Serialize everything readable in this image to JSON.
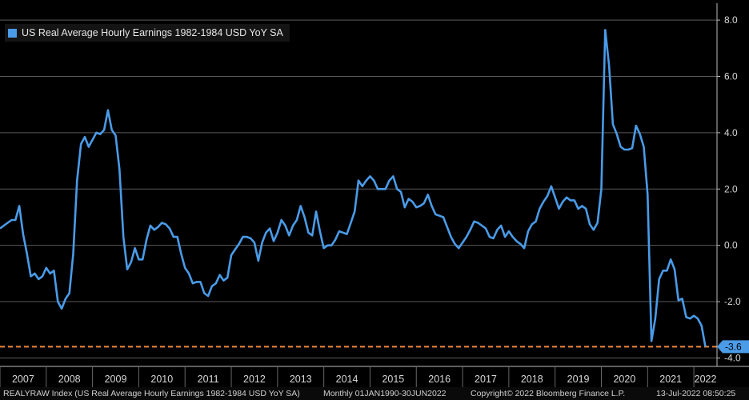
{
  "chart_data": {
    "type": "line",
    "series": [
      {
        "name": "US Real Average Hourly Earnings 1982-1984 USD YoY SA",
        "color": "#4a9be8",
        "points": [
          [
            "2007-01",
            0.6
          ],
          [
            "2007-02",
            0.7
          ],
          [
            "2007-03",
            0.8
          ],
          [
            "2007-04",
            0.9
          ],
          [
            "2007-05",
            0.9
          ],
          [
            "2007-06",
            1.4
          ],
          [
            "2007-07",
            0.4
          ],
          [
            "2007-08",
            -0.3
          ],
          [
            "2007-09",
            -1.1
          ],
          [
            "2007-10",
            -1.0
          ],
          [
            "2007-11",
            -1.2
          ],
          [
            "2007-12",
            -1.1
          ],
          [
            "2008-01",
            -0.8
          ],
          [
            "2008-02",
            -1.0
          ],
          [
            "2008-03",
            -0.9
          ],
          [
            "2008-04",
            -2.0
          ],
          [
            "2008-05",
            -2.25
          ],
          [
            "2008-06",
            -1.9
          ],
          [
            "2008-07",
            -1.7
          ],
          [
            "2008-08",
            -0.3
          ],
          [
            "2008-09",
            2.3
          ],
          [
            "2008-10",
            3.6
          ],
          [
            "2008-11",
            3.85
          ],
          [
            "2008-12",
            3.5
          ],
          [
            "2009-01",
            3.75
          ],
          [
            "2009-02",
            4.0
          ],
          [
            "2009-03",
            3.95
          ],
          [
            "2009-04",
            4.1
          ],
          [
            "2009-05",
            4.8
          ],
          [
            "2009-06",
            4.1
          ],
          [
            "2009-07",
            3.9
          ],
          [
            "2009-08",
            2.7
          ],
          [
            "2009-09",
            0.3
          ],
          [
            "2009-10",
            -0.85
          ],
          [
            "2009-11",
            -0.6
          ],
          [
            "2009-12",
            -0.1
          ],
          [
            "2010-01",
            -0.5
          ],
          [
            "2010-02",
            -0.5
          ],
          [
            "2010-03",
            0.2
          ],
          [
            "2010-04",
            0.7
          ],
          [
            "2010-05",
            0.55
          ],
          [
            "2010-06",
            0.65
          ],
          [
            "2010-07",
            0.8
          ],
          [
            "2010-08",
            0.75
          ],
          [
            "2010-09",
            0.6
          ],
          [
            "2010-10",
            0.3
          ],
          [
            "2010-11",
            0.3
          ],
          [
            "2010-12",
            -0.3
          ],
          [
            "2011-01",
            -0.8
          ],
          [
            "2011-02",
            -1.0
          ],
          [
            "2011-03",
            -1.35
          ],
          [
            "2011-04",
            -1.3
          ],
          [
            "2011-05",
            -1.3
          ],
          [
            "2011-06",
            -1.7
          ],
          [
            "2011-07",
            -1.8
          ],
          [
            "2011-08",
            -1.45
          ],
          [
            "2011-09",
            -1.35
          ],
          [
            "2011-10",
            -1.05
          ],
          [
            "2011-11",
            -1.25
          ],
          [
            "2011-12",
            -1.15
          ],
          [
            "2012-01",
            -0.35
          ],
          [
            "2012-02",
            -0.15
          ],
          [
            "2012-03",
            0.05
          ],
          [
            "2012-04",
            0.3
          ],
          [
            "2012-05",
            0.3
          ],
          [
            "2012-06",
            0.25
          ],
          [
            "2012-07",
            0.1
          ],
          [
            "2012-08",
            -0.55
          ],
          [
            "2012-09",
            0.1
          ],
          [
            "2012-10",
            0.45
          ],
          [
            "2012-11",
            0.6
          ],
          [
            "2012-12",
            0.15
          ],
          [
            "2013-01",
            0.45
          ],
          [
            "2013-02",
            0.9
          ],
          [
            "2013-03",
            0.7
          ],
          [
            "2013-04",
            0.35
          ],
          [
            "2013-05",
            0.7
          ],
          [
            "2013-06",
            0.9
          ],
          [
            "2013-07",
            1.4
          ],
          [
            "2013-08",
            1.0
          ],
          [
            "2013-09",
            0.45
          ],
          [
            "2013-10",
            0.35
          ],
          [
            "2013-11",
            1.2
          ],
          [
            "2013-12",
            0.5
          ],
          [
            "2014-01",
            -0.1
          ],
          [
            "2014-02",
            0.0
          ],
          [
            "2014-03",
            0.0
          ],
          [
            "2014-04",
            0.2
          ],
          [
            "2014-05",
            0.5
          ],
          [
            "2014-06",
            0.45
          ],
          [
            "2014-07",
            0.4
          ],
          [
            "2014-08",
            0.8
          ],
          [
            "2014-09",
            1.2
          ],
          [
            "2014-10",
            2.3
          ],
          [
            "2014-11",
            2.1
          ],
          [
            "2014-12",
            2.3
          ],
          [
            "2015-01",
            2.45
          ],
          [
            "2015-02",
            2.3
          ],
          [
            "2015-03",
            2.0
          ],
          [
            "2015-04",
            2.0
          ],
          [
            "2015-05",
            2.0
          ],
          [
            "2015-06",
            2.3
          ],
          [
            "2015-07",
            2.45
          ],
          [
            "2015-08",
            2.0
          ],
          [
            "2015-09",
            1.9
          ],
          [
            "2015-10",
            1.35
          ],
          [
            "2015-11",
            1.65
          ],
          [
            "2015-12",
            1.55
          ],
          [
            "2016-01",
            1.35
          ],
          [
            "2016-02",
            1.4
          ],
          [
            "2016-03",
            1.5
          ],
          [
            "2016-04",
            1.8
          ],
          [
            "2016-05",
            1.4
          ],
          [
            "2016-06",
            1.1
          ],
          [
            "2016-07",
            1.05
          ],
          [
            "2016-08",
            1.0
          ],
          [
            "2016-09",
            0.65
          ],
          [
            "2016-10",
            0.3
          ],
          [
            "2016-11",
            0.05
          ],
          [
            "2016-12",
            -0.1
          ],
          [
            "2017-01",
            0.1
          ],
          [
            "2017-02",
            0.3
          ],
          [
            "2017-03",
            0.55
          ],
          [
            "2017-04",
            0.85
          ],
          [
            "2017-05",
            0.8
          ],
          [
            "2017-06",
            0.7
          ],
          [
            "2017-07",
            0.6
          ],
          [
            "2017-08",
            0.3
          ],
          [
            "2017-09",
            0.25
          ],
          [
            "2017-10",
            0.55
          ],
          [
            "2017-11",
            0.7
          ],
          [
            "2017-12",
            0.3
          ],
          [
            "2018-01",
            0.5
          ],
          [
            "2018-02",
            0.3
          ],
          [
            "2018-03",
            0.15
          ],
          [
            "2018-04",
            0.05
          ],
          [
            "2018-05",
            -0.1
          ],
          [
            "2018-06",
            0.5
          ],
          [
            "2018-07",
            0.75
          ],
          [
            "2018-08",
            0.85
          ],
          [
            "2018-09",
            1.3
          ],
          [
            "2018-10",
            1.55
          ],
          [
            "2018-11",
            1.75
          ],
          [
            "2018-12",
            2.1
          ],
          [
            "2019-01",
            1.7
          ],
          [
            "2019-02",
            1.3
          ],
          [
            "2019-03",
            1.55
          ],
          [
            "2019-04",
            1.7
          ],
          [
            "2019-05",
            1.6
          ],
          [
            "2019-06",
            1.6
          ],
          [
            "2019-07",
            1.3
          ],
          [
            "2019-08",
            1.4
          ],
          [
            "2019-09",
            1.3
          ],
          [
            "2019-10",
            0.75
          ],
          [
            "2019-11",
            0.55
          ],
          [
            "2019-12",
            0.8
          ],
          [
            "2020-01",
            2.0
          ],
          [
            "2020-02",
            7.65
          ],
          [
            "2020-03",
            6.4
          ],
          [
            "2020-04",
            4.3
          ],
          [
            "2020-05",
            3.95
          ],
          [
            "2020-06",
            3.5
          ],
          [
            "2020-07",
            3.4
          ],
          [
            "2020-08",
            3.4
          ],
          [
            "2020-09",
            3.45
          ],
          [
            "2020-10",
            4.25
          ],
          [
            "2020-11",
            3.95
          ],
          [
            "2020-12",
            3.5
          ],
          [
            "2021-01",
            1.8
          ],
          [
            "2021-02",
            -3.4
          ],
          [
            "2021-03",
            -2.6
          ],
          [
            "2021-04",
            -1.2
          ],
          [
            "2021-05",
            -0.9
          ],
          [
            "2021-06",
            -0.9
          ],
          [
            "2021-07",
            -0.5
          ],
          [
            "2021-08",
            -0.85
          ],
          [
            "2021-09",
            -1.95
          ],
          [
            "2021-10",
            -1.9
          ],
          [
            "2021-11",
            -2.55
          ],
          [
            "2021-12",
            -2.6
          ],
          [
            "2022-01",
            -2.5
          ],
          [
            "2022-02",
            -2.6
          ],
          [
            "2022-03",
            -2.85
          ],
          [
            "2022-04",
            -3.6
          ]
        ]
      }
    ],
    "x_tick_labels": [
      "2007",
      "2008",
      "2009",
      "2010",
      "2011",
      "2012",
      "2013",
      "2014",
      "2015",
      "2016",
      "2017",
      "2018",
      "2019",
      "2020",
      "2021",
      "2022"
    ],
    "y_ticks": [
      8.0,
      6.0,
      4.0,
      2.0,
      0.0,
      -2.0,
      -4.0
    ],
    "y_tick_labels": [
      "8.0",
      "6.0",
      "4.0",
      "2.0",
      "0.0",
      "-2.0",
      "-4.0"
    ],
    "ylim": [
      -4.3,
      8.6
    ],
    "xlim": [
      "2007-01",
      "2022-06"
    ],
    "grid": "horizontal",
    "y_axis_side": "right",
    "legend_position": "top-left",
    "reference_line": {
      "value": -3.6,
      "color": "#f08a3c",
      "style": "dashed"
    },
    "last_value_label": "-3.6",
    "background": "#000000"
  },
  "footer": {
    "index": "REALYRAW Index (US Real Average Hourly Earnings 1982-1984 USD YoY SA)",
    "range": "Monthly 01JAN1990-30JUN2022",
    "copyright": "Copyright© 2022 Bloomberg Finance L.P.",
    "timestamp": "13-Jul-2022  08:50:25"
  }
}
